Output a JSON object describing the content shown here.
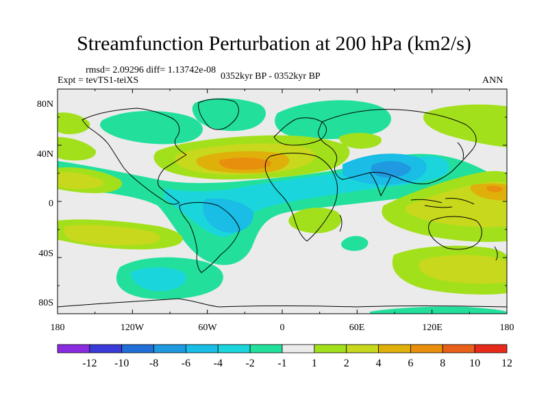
{
  "title": "Streamfunction Perturbation at 200 hPa (km2/s)",
  "stats_line": "rmsd= 2.09296 diff= 1.13742e-08",
  "expt_label": "Expt = tevTS1-teiXS",
  "period_label": "0352kyr BP - 0352kyr BP",
  "season_label": "ANN",
  "lat_labels": [
    "80N",
    "40N",
    "0",
    "40S",
    "80S"
  ],
  "lon_labels": [
    "180",
    "120W",
    "60W",
    "0",
    "60E",
    "120E",
    "180"
  ],
  "legend": {
    "labels": [
      "-12",
      "-10",
      "-8",
      "-6",
      "-4",
      "-2",
      "-1",
      "1",
      "2",
      "4",
      "6",
      "8",
      "10",
      "12"
    ],
    "colors": [
      "#8b2be0",
      "#3a3ad8",
      "#1f6fd6",
      "#1f9ae0",
      "#19bde6",
      "#1ad6dc",
      "#22e09c",
      "#ebebeb",
      "#a3e01c",
      "#c8d81c",
      "#e0b00a",
      "#e8900e",
      "#e8601a",
      "#e82a1a"
    ]
  },
  "colors": {
    "neutral": "#ebebeb",
    "coast": "#000000"
  }
}
